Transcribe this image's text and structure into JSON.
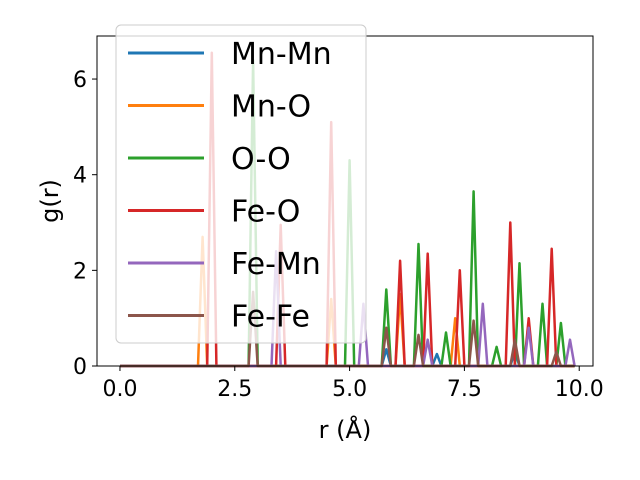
{
  "chart_data": {
    "type": "line",
    "title": "",
    "xlabel": "r (Å)",
    "ylabel": "g(r)",
    "xlim": [
      -0.5,
      10.3
    ],
    "ylim": [
      0,
      6.9
    ],
    "xticks": [
      0.0,
      2.5,
      5.0,
      7.5,
      10.0
    ],
    "xtick_labels": [
      "0.0",
      "2.5",
      "5.0",
      "7.5",
      "10.0"
    ],
    "yticks": [
      0,
      2,
      4,
      6
    ],
    "ytick_labels": [
      "0",
      "2",
      "4",
      "6"
    ],
    "legend_position": "upper-left",
    "grid": false,
    "series": [
      {
        "name": "Mn-Mn",
        "color": "#1f77b4",
        "x": [
          0.0,
          5.7,
          5.8,
          5.9,
          6.8,
          6.9,
          7.0,
          8.5,
          8.6,
          8.7,
          9.9
        ],
        "y": [
          0,
          0,
          0.35,
          0,
          0,
          0.25,
          0,
          0,
          0.3,
          0,
          0
        ]
      },
      {
        "name": "Mn-O",
        "color": "#ff7f0e",
        "x": [
          0.0,
          1.7,
          1.8,
          1.9,
          4.5,
          4.6,
          4.7,
          6.0,
          6.1,
          6.2,
          7.2,
          7.3,
          7.4,
          9.9
        ],
        "y": [
          0,
          0,
          2.7,
          0,
          0,
          1.4,
          0,
          0,
          1.5,
          0,
          0,
          1.0,
          0,
          0
        ]
      },
      {
        "name": "O-O",
        "color": "#2ca02c",
        "x": [
          0.0,
          2.8,
          2.9,
          3.0,
          4.9,
          5.0,
          5.1,
          5.7,
          5.8,
          5.9,
          6.4,
          6.5,
          6.6,
          7.0,
          7.1,
          7.2,
          7.6,
          7.7,
          7.8,
          8.1,
          8.2,
          8.3,
          8.6,
          8.7,
          8.8,
          9.1,
          9.2,
          9.3,
          9.5,
          9.6,
          9.7,
          9.9
        ],
        "y": [
          0,
          0,
          6.4,
          0,
          0,
          4.3,
          0,
          0,
          1.6,
          0,
          0,
          2.55,
          0,
          0,
          0.7,
          0,
          0,
          3.65,
          0,
          0,
          0.4,
          0,
          0,
          2.15,
          0,
          0,
          1.3,
          0,
          0,
          0.9,
          0,
          0
        ]
      },
      {
        "name": "Fe-O",
        "color": "#d62728",
        "x": [
          0.0,
          1.9,
          2.0,
          2.1,
          3.4,
          3.5,
          3.6,
          4.5,
          4.6,
          4.7,
          6.0,
          6.1,
          6.2,
          6.6,
          6.7,
          6.8,
          7.3,
          7.4,
          7.5,
          8.4,
          8.5,
          8.6,
          8.8,
          8.9,
          9.0,
          9.3,
          9.4,
          9.5,
          9.9
        ],
        "y": [
          0,
          0,
          6.55,
          0,
          0,
          2.95,
          0,
          0,
          5.1,
          0,
          0,
          2.2,
          0,
          0,
          2.35,
          0,
          0,
          2.0,
          0,
          0,
          3.0,
          0,
          0,
          1.0,
          0,
          0,
          2.45,
          0,
          0
        ]
      },
      {
        "name": "Fe-Mn",
        "color": "#9467bd",
        "x": [
          0.0,
          3.3,
          3.4,
          3.5,
          5.2,
          5.3,
          5.4,
          6.6,
          6.7,
          6.8,
          7.8,
          7.9,
          8.0,
          8.8,
          8.9,
          9.0,
          9.7,
          9.8,
          9.9
        ],
        "y": [
          0,
          0,
          2.4,
          0,
          0,
          1.3,
          0,
          0,
          0.55,
          0,
          0,
          1.3,
          0,
          0,
          0.8,
          0,
          0,
          0.55,
          0
        ]
      },
      {
        "name": "Fe-Fe",
        "color": "#8c564b",
        "x": [
          0.0,
          2.8,
          2.9,
          3.0,
          5.7,
          5.8,
          5.9,
          6.4,
          6.5,
          6.6,
          7.6,
          7.7,
          7.8,
          8.5,
          8.6,
          8.7,
          9.4,
          9.5,
          9.6,
          9.9
        ],
        "y": [
          0,
          0,
          1.55,
          0,
          0,
          0.8,
          0,
          0,
          0.65,
          0,
          0,
          0.95,
          0,
          0,
          0.55,
          0,
          0,
          0.3,
          0,
          0
        ]
      }
    ]
  }
}
